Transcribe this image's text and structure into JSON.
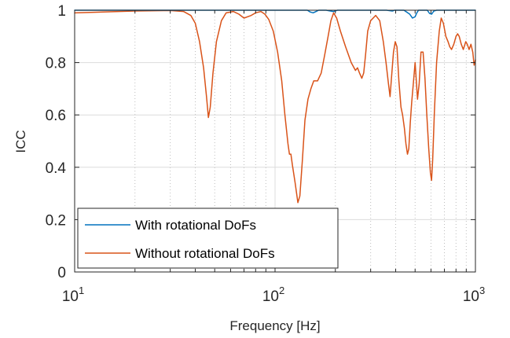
{
  "chart_data": {
    "type": "line",
    "title": "",
    "xlabel": "Frequency [Hz]",
    "ylabel": "ICC",
    "xscale": "log",
    "xlim": [
      10,
      1000
    ],
    "ylim": [
      0,
      1
    ],
    "grid": true,
    "minor_grid": true,
    "legend_position": "bottom-left",
    "x_ticks": [
      {
        "base": "10",
        "exp": "1"
      },
      {
        "base": "10",
        "exp": "2"
      },
      {
        "base": "10",
        "exp": "3"
      }
    ],
    "y_ticks": [
      "0",
      "0.2",
      "0.4",
      "0.6",
      "0.8",
      "1"
    ],
    "y_tick_values": [
      0,
      0.2,
      0.4,
      0.6,
      0.8,
      1
    ],
    "series": [
      {
        "name": "With rotational DoFs",
        "color": "#0072BD",
        "points": [
          [
            10,
            1.0
          ],
          [
            100,
            1.0
          ],
          [
            145,
            1.0
          ],
          [
            150,
            0.993
          ],
          [
            155,
            0.99
          ],
          [
            160,
            0.995
          ],
          [
            165,
            1.0
          ],
          [
            180,
            1.0
          ],
          [
            195,
            0.995
          ],
          [
            205,
            1.0
          ],
          [
            300,
            1.0
          ],
          [
            360,
            1.0
          ],
          [
            385,
            0.997
          ],
          [
            395,
            1.0
          ],
          [
            440,
            1.0
          ],
          [
            470,
            0.985
          ],
          [
            485,
            0.97
          ],
          [
            500,
            0.975
          ],
          [
            510,
            0.99
          ],
          [
            520,
            1.0
          ],
          [
            575,
            1.0
          ],
          [
            590,
            0.988
          ],
          [
            605,
            0.985
          ],
          [
            620,
            0.997
          ],
          [
            640,
            1.0
          ],
          [
            1000,
            1.0
          ]
        ]
      },
      {
        "name": "Without rotational DoFs",
        "color": "#D95319",
        "points": [
          [
            10,
            0.99
          ],
          [
            20,
            0.997
          ],
          [
            30,
            0.999
          ],
          [
            35,
            0.995
          ],
          [
            38,
            0.98
          ],
          [
            40,
            0.95
          ],
          [
            42,
            0.88
          ],
          [
            44,
            0.78
          ],
          [
            45.5,
            0.67
          ],
          [
            46.5,
            0.59
          ],
          [
            47.5,
            0.63
          ],
          [
            49,
            0.76
          ],
          [
            51,
            0.88
          ],
          [
            54,
            0.96
          ],
          [
            57,
            0.99
          ],
          [
            62,
            0.995
          ],
          [
            66,
            0.985
          ],
          [
            70,
            0.97
          ],
          [
            76,
            0.98
          ],
          [
            80,
            0.99
          ],
          [
            85,
            0.995
          ],
          [
            89,
            0.985
          ],
          [
            93,
            0.965
          ],
          [
            98,
            0.92
          ],
          [
            103,
            0.84
          ],
          [
            108,
            0.73
          ],
          [
            112,
            0.6
          ],
          [
            116,
            0.49
          ],
          [
            118,
            0.45
          ],
          [
            120,
            0.45
          ],
          [
            122,
            0.41
          ],
          [
            126,
            0.34
          ],
          [
            130,
            0.265
          ],
          [
            133,
            0.29
          ],
          [
            137,
            0.43
          ],
          [
            141,
            0.58
          ],
          [
            146,
            0.66
          ],
          [
            151,
            0.7
          ],
          [
            156,
            0.73
          ],
          [
            163,
            0.73
          ],
          [
            170,
            0.76
          ],
          [
            177,
            0.83
          ],
          [
            184,
            0.9
          ],
          [
            190,
            0.96
          ],
          [
            196,
            0.99
          ],
          [
            203,
            0.97
          ],
          [
            212,
            0.92
          ],
          [
            225,
            0.86
          ],
          [
            240,
            0.8
          ],
          [
            252,
            0.77
          ],
          [
            258,
            0.78
          ],
          [
            264,
            0.76
          ],
          [
            271,
            0.74
          ],
          [
            277,
            0.76
          ],
          [
            283,
            0.83
          ],
          [
            290,
            0.92
          ],
          [
            300,
            0.96
          ],
          [
            318,
            0.98
          ],
          [
            333,
            0.96
          ],
          [
            347,
            0.88
          ],
          [
            358,
            0.8
          ],
          [
            368,
            0.72
          ],
          [
            375,
            0.67
          ],
          [
            381,
            0.74
          ],
          [
            390,
            0.84
          ],
          [
            398,
            0.88
          ],
          [
            406,
            0.86
          ],
          [
            415,
            0.73
          ],
          [
            425,
            0.63
          ],
          [
            433,
            0.6
          ],
          [
            442,
            0.55
          ],
          [
            450,
            0.49
          ],
          [
            458,
            0.45
          ],
          [
            465,
            0.47
          ],
          [
            473,
            0.57
          ],
          [
            481,
            0.65
          ],
          [
            490,
            0.72
          ],
          [
            500,
            0.8
          ],
          [
            508,
            0.72
          ],
          [
            514,
            0.66
          ],
          [
            524,
            0.72
          ],
          [
            535,
            0.84
          ],
          [
            548,
            0.84
          ],
          [
            560,
            0.74
          ],
          [
            572,
            0.6
          ],
          [
            585,
            0.47
          ],
          [
            596,
            0.38
          ],
          [
            604,
            0.35
          ],
          [
            612,
            0.43
          ],
          [
            624,
            0.61
          ],
          [
            640,
            0.8
          ],
          [
            660,
            0.92
          ],
          [
            675,
            0.97
          ],
          [
            692,
            0.95
          ],
          [
            712,
            0.9
          ],
          [
            730,
            0.88
          ],
          [
            745,
            0.86
          ],
          [
            760,
            0.85
          ],
          [
            780,
            0.87
          ],
          [
            800,
            0.9
          ],
          [
            815,
            0.91
          ],
          [
            830,
            0.9
          ],
          [
            850,
            0.87
          ],
          [
            870,
            0.85
          ],
          [
            895,
            0.88
          ],
          [
            910,
            0.87
          ],
          [
            930,
            0.85
          ],
          [
            950,
            0.87
          ],
          [
            970,
            0.84
          ],
          [
            985,
            0.79
          ],
          [
            1000,
            0.81
          ]
        ]
      }
    ]
  }
}
